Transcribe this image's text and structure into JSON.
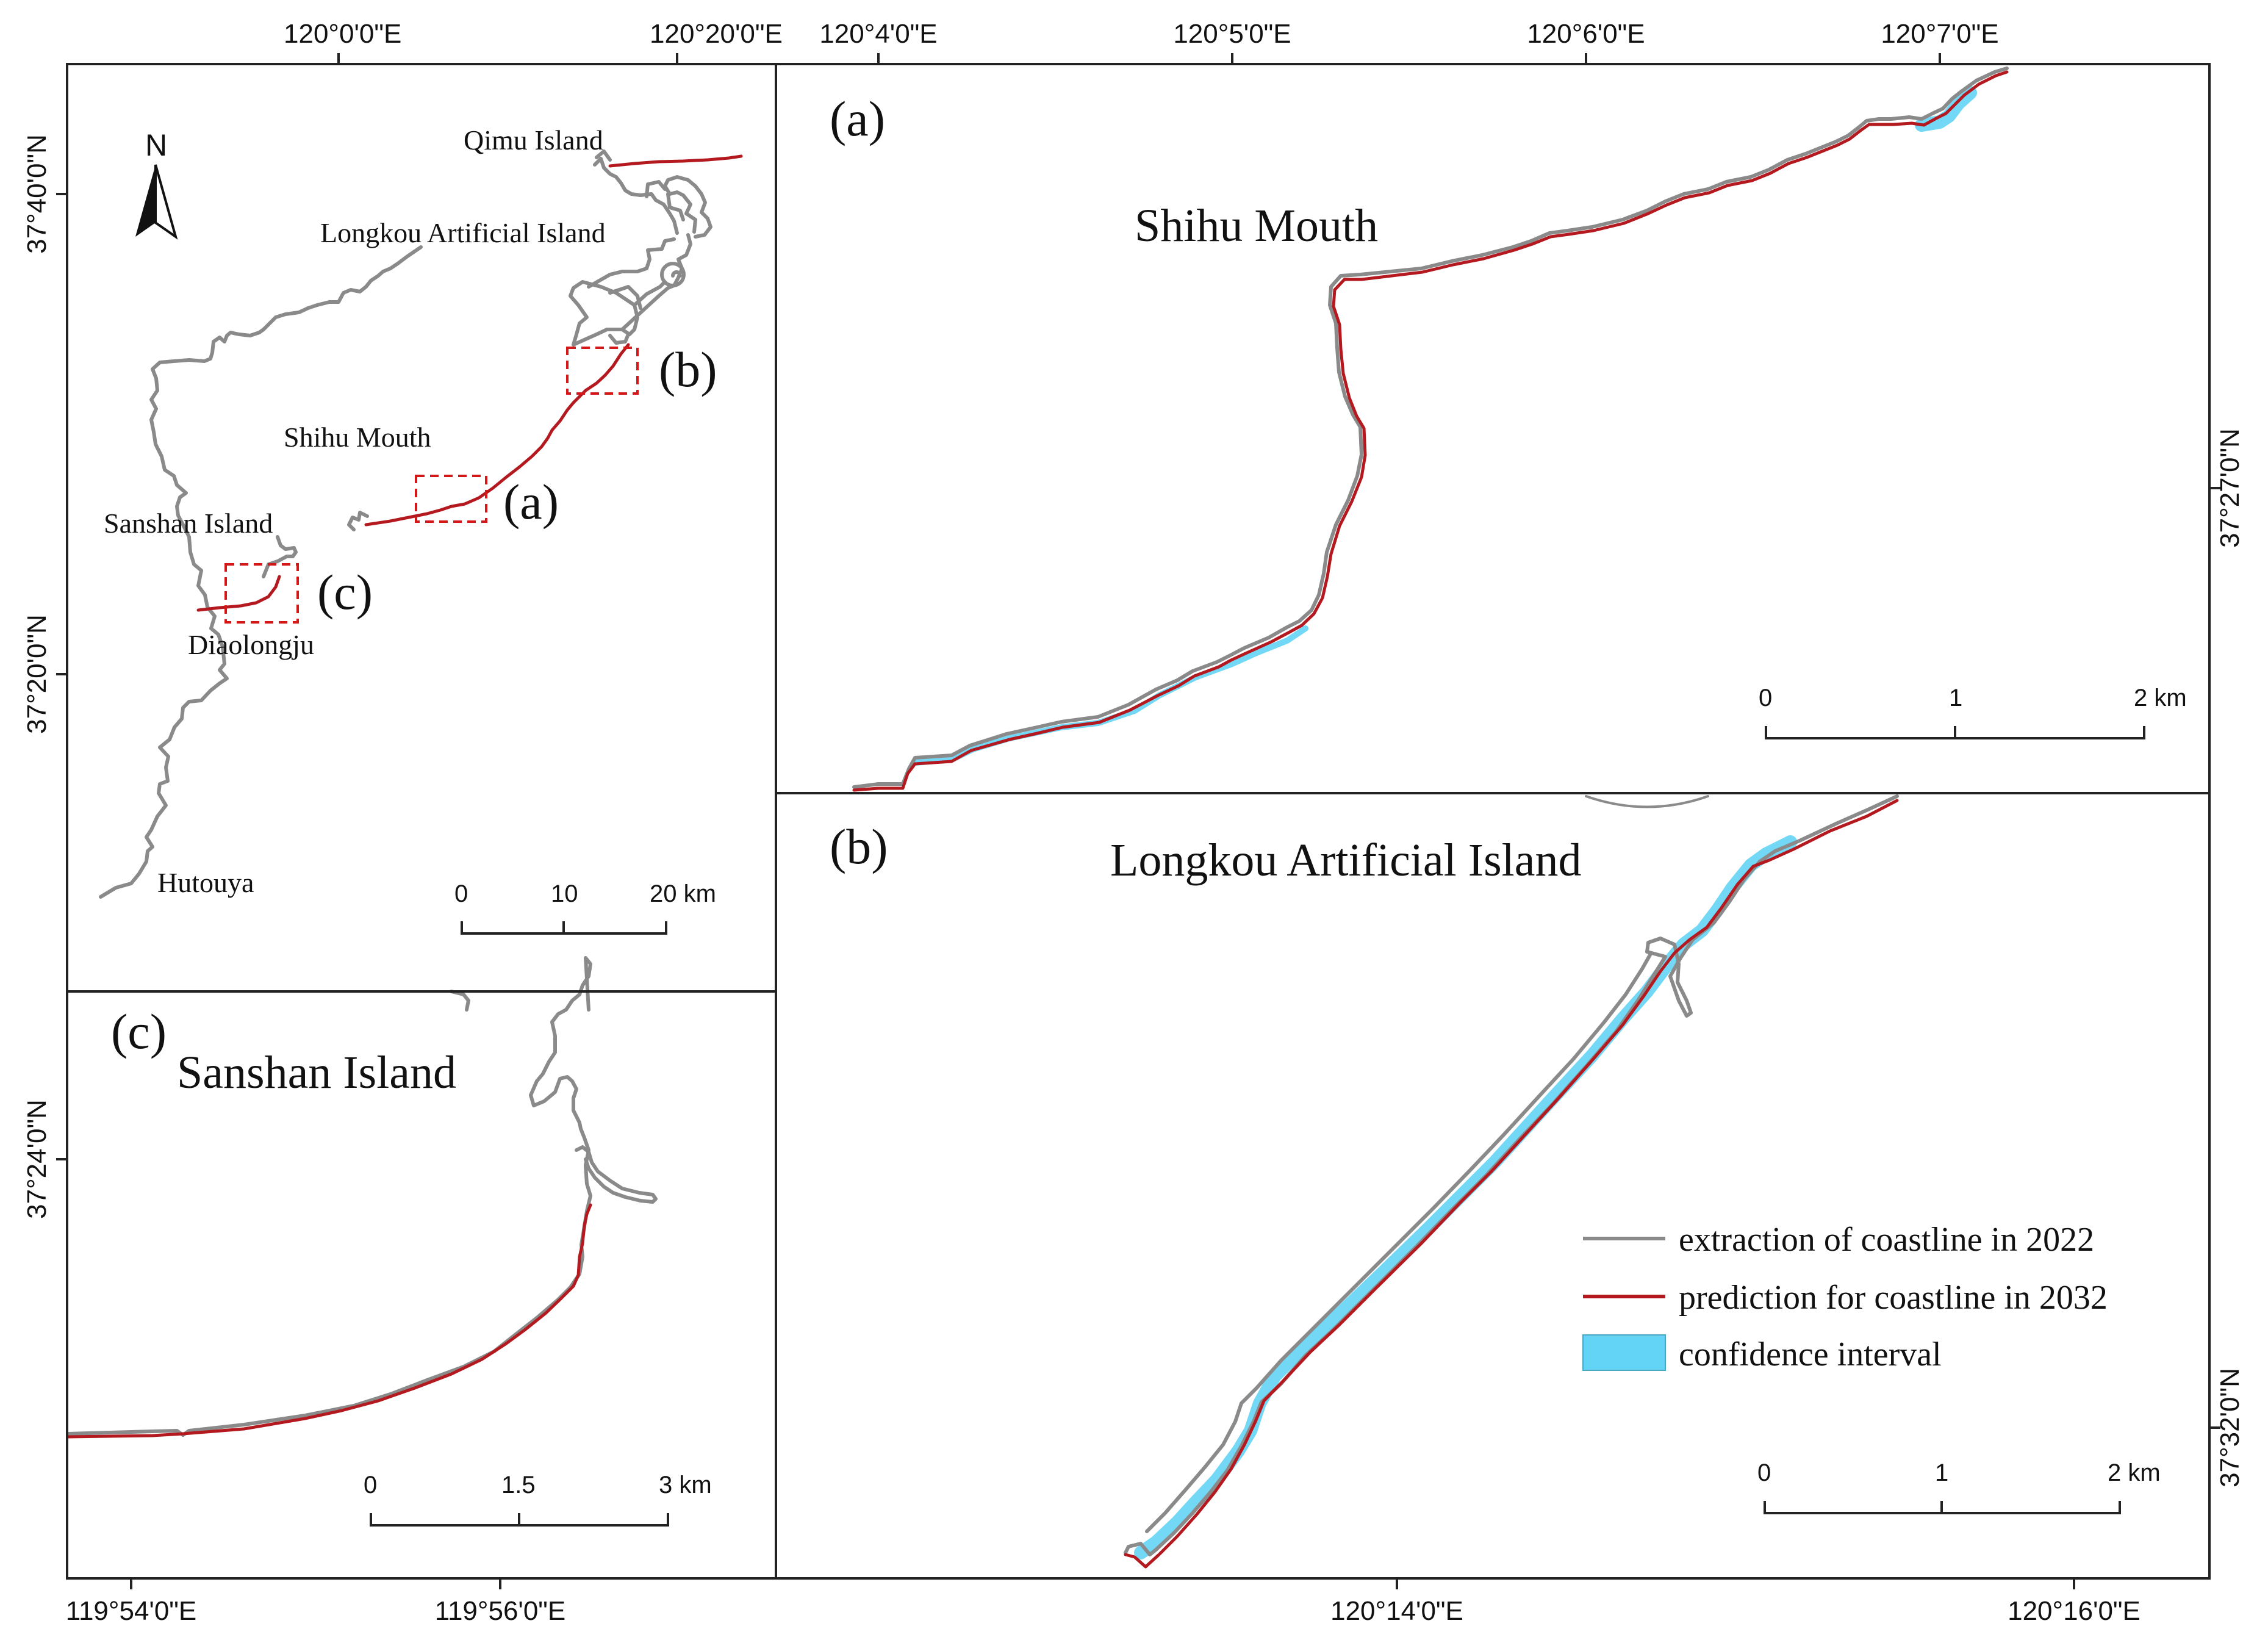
{
  "overview": {
    "lon_ticks": [
      "120°0'0\"E",
      "120°20'0\"E"
    ],
    "lat_ticks": [
      "37°40'0\"N",
      "37°20'0\"N"
    ],
    "north_label": "N",
    "places": {
      "qimu": "Qimu Island",
      "longkou": "Longkou Artificial Island",
      "shihu": "Shihu Mouth",
      "sanshan": "Sanshan Island",
      "diaolongju": "Diaolongju",
      "hutouya": "Hutouya"
    },
    "extent_labels": {
      "a": "(a)",
      "b": "(b)",
      "c": "(c)"
    },
    "scale": {
      "labels": [
        "0",
        "10",
        "20 km"
      ]
    }
  },
  "panel_a": {
    "letter": "(a)",
    "title": "Shihu Mouth",
    "lon_ticks": [
      "120°4'0\"E",
      "120°5'0\"E",
      "120°6'0\"E",
      "120°7'0\"E"
    ],
    "lat_tick": "37°27'0\"N",
    "scale": {
      "labels": [
        "0",
        "1",
        "2 km"
      ]
    }
  },
  "panel_b": {
    "letter": "(b)",
    "title": "Longkou Artificial Island",
    "lon_ticks": [
      "120°14'0\"E",
      "120°16'0\"E"
    ],
    "lat_tick": "37°32'0\"N",
    "scale": {
      "labels": [
        "0",
        "1",
        "2 km"
      ]
    }
  },
  "panel_c": {
    "letter": "(c)",
    "title": "Sanshan Island",
    "lon_ticks": [
      "119°54'0\"E",
      "119°56'0\"E"
    ],
    "lat_tick": "37°24'0\"N",
    "scale": {
      "labels": [
        "0",
        "1.5",
        "3 km"
      ]
    }
  },
  "legend": {
    "extraction": "extraction of coastline in 2022",
    "prediction": "prediction for coastline in 2032",
    "confidence": "confidence interval"
  },
  "colors": {
    "extraction_2022": "#8a8a8a",
    "prediction_2032": "#b3191e",
    "confidence_interval": "#63d4f5",
    "extent_box": "#d41818"
  }
}
